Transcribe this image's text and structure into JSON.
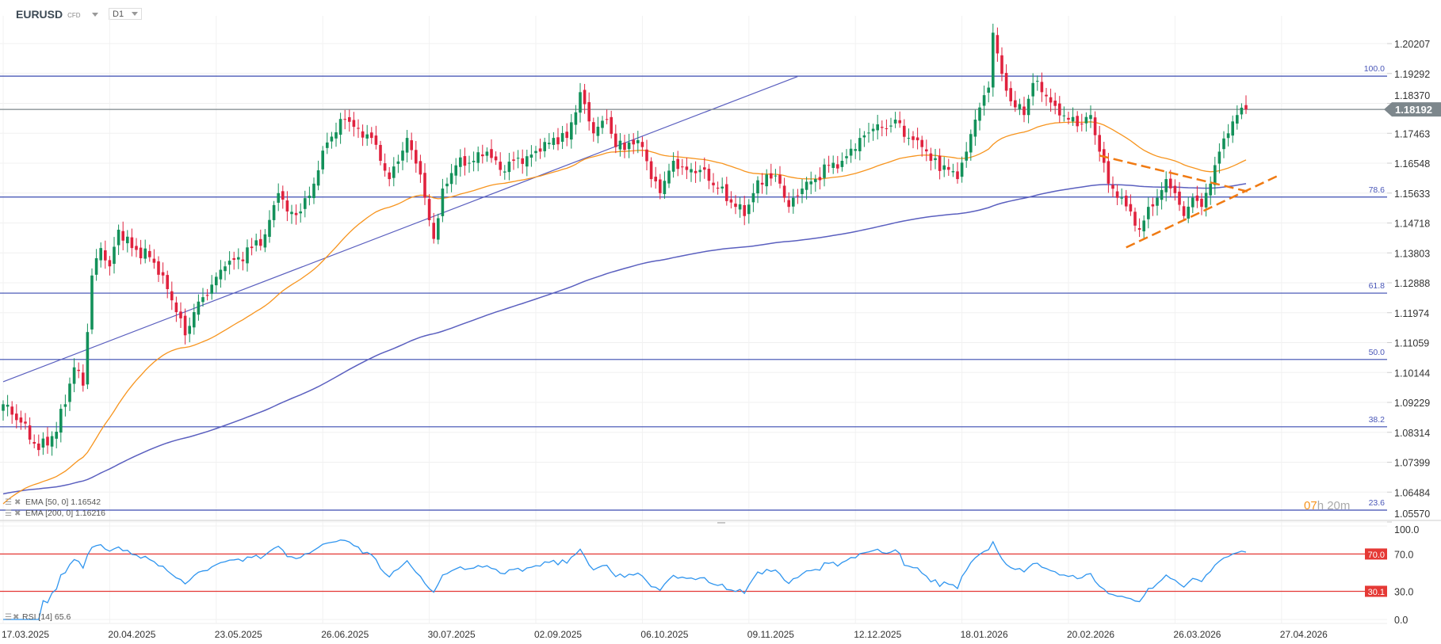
{
  "header": {
    "symbol": "EURUSD",
    "instrument_type": "CFD",
    "timeframe": "D1"
  },
  "colors": {
    "up": "#13915a",
    "down": "#e0223e",
    "ema50": "#f7941d",
    "ema200": "#5a5fbf",
    "fib": "#3a4bb0",
    "rsi": "#2f95ef",
    "rsi_levels": "#e53935",
    "trend": "#5a5fbf",
    "triangle": "#f07a12",
    "price_tag": "#7d878c"
  },
  "chart_data": {
    "type": "candlestick",
    "symbol": "EURUSD",
    "timeframe": "D1",
    "y_ticks": [
      "1.20207",
      "1.19292",
      "1.18370",
      "1.17463",
      "1.16548",
      "1.15633",
      "1.14718",
      "1.13803",
      "1.12888",
      "1.11974",
      "1.11059",
      "1.10144",
      "1.09229",
      "1.08314",
      "1.07399",
      "1.06484",
      "1.05570"
    ],
    "ylim": [
      1.0557,
      1.216
    ],
    "x_ticks": [
      "17.03.2025",
      "20.04.2025",
      "23.05.2025",
      "26.06.2025",
      "30.07.2025",
      "02.09.2025",
      "06.10.2025",
      "09.11.2025",
      "12.12.2025",
      "18.01.2026",
      "20.02.2026",
      "26.03.2026",
      "27.04.2026"
    ],
    "bars_per_x_tick": 24,
    "last_price": "1.18192",
    "last_price_value": 1.18192,
    "close_waypoints": [
      [
        0,
        1.0917
      ],
      [
        4,
        1.0861
      ],
      [
        8,
        1.0777
      ],
      [
        12,
        1.0833
      ],
      [
        16,
        1.103
      ],
      [
        18,
        1.0974
      ],
      [
        20,
        1.1311
      ],
      [
        22,
        1.1395
      ],
      [
        24,
        1.1339
      ],
      [
        26,
        1.1451
      ],
      [
        29,
        1.1395
      ],
      [
        33,
        1.1367
      ],
      [
        36,
        1.1311
      ],
      [
        39,
        1.1199
      ],
      [
        41,
        1.1128
      ],
      [
        43,
        1.1199
      ],
      [
        47,
        1.1283
      ],
      [
        50,
        1.1339
      ],
      [
        53,
        1.1367
      ],
      [
        56,
        1.1395
      ],
      [
        59,
        1.1437
      ],
      [
        62,
        1.1563
      ],
      [
        64,
        1.1507
      ],
      [
        67,
        1.1507
      ],
      [
        70,
        1.1592
      ],
      [
        73,
        1.1718
      ],
      [
        77,
        1.1788
      ],
      [
        80,
        1.176
      ],
      [
        83,
        1.1732
      ],
      [
        85,
        1.1662
      ],
      [
        87,
        1.1606
      ],
      [
        91,
        1.1732
      ],
      [
        94,
        1.162
      ],
      [
        95,
        1.1549
      ],
      [
        97,
        1.1423
      ],
      [
        99,
        1.1577
      ],
      [
        102,
        1.1648
      ],
      [
        106,
        1.1662
      ],
      [
        109,
        1.169
      ],
      [
        112,
        1.1634
      ],
      [
        115,
        1.1662
      ],
      [
        118,
        1.1676
      ],
      [
        121,
        1.169
      ],
      [
        124,
        1.1732
      ],
      [
        127,
        1.1732
      ],
      [
        130,
        1.1872
      ],
      [
        133,
        1.1746
      ],
      [
        136,
        1.1788
      ],
      [
        138,
        1.1704
      ],
      [
        141,
        1.1718
      ],
      [
        144,
        1.1704
      ],
      [
        146,
        1.1606
      ],
      [
        148,
        1.1563
      ],
      [
        151,
        1.1662
      ],
      [
        154,
        1.1634
      ],
      [
        157,
        1.1634
      ],
      [
        161,
        1.1577
      ],
      [
        165,
        1.1521
      ],
      [
        167,
        1.1493
      ],
      [
        169,
        1.1563
      ],
      [
        172,
        1.162
      ],
      [
        175,
        1.1592
      ],
      [
        177,
        1.1521
      ],
      [
        180,
        1.1577
      ],
      [
        183,
        1.1606
      ],
      [
        186,
        1.1648
      ],
      [
        189,
        1.1662
      ],
      [
        193,
        1.1732
      ],
      [
        196,
        1.176
      ],
      [
        199,
        1.176
      ],
      [
        201,
        1.1788
      ],
      [
        204,
        1.1732
      ],
      [
        207,
        1.1704
      ],
      [
        209,
        1.1662
      ],
      [
        212,
        1.1648
      ],
      [
        215,
        1.1606
      ],
      [
        217,
        1.169
      ],
      [
        219,
        1.1788
      ],
      [
        222,
        1.1886
      ],
      [
        223,
        1.2054
      ],
      [
        225,
        1.1928
      ],
      [
        227,
        1.1844
      ],
      [
        230,
        1.1802
      ],
      [
        232,
        1.19
      ],
      [
        234,
        1.1872
      ],
      [
        237,
        1.183
      ],
      [
        240,
        1.1788
      ],
      [
        243,
        1.1774
      ],
      [
        245,
        1.1802
      ],
      [
        247,
        1.169
      ],
      [
        249,
        1.1592
      ],
      [
        252,
        1.1549
      ],
      [
        254,
        1.1507
      ],
      [
        256,
        1.1451
      ],
      [
        258,
        1.1521
      ],
      [
        260,
        1.1549
      ],
      [
        262,
        1.1606
      ],
      [
        264,
        1.1563
      ],
      [
        266,
        1.1493
      ],
      [
        268,
        1.1549
      ],
      [
        270,
        1.1521
      ],
      [
        272,
        1.1592
      ],
      [
        274,
        1.169
      ],
      [
        276,
        1.1746
      ],
      [
        278,
        1.1802
      ],
      [
        280,
        1.18192
      ]
    ],
    "fibonacci": [
      {
        "label": "100.0",
        "price": 1.1921
      },
      {
        "label": "78.6",
        "price": 1.1551
      },
      {
        "label": "61.8",
        "price": 1.1257
      },
      {
        "label": "50.0",
        "price": 1.1054
      },
      {
        "label": "38.2",
        "price": 1.0848
      },
      {
        "label": "23.6",
        "price": 1.0593
      }
    ],
    "trendline": {
      "from": [
        0,
        1.0986
      ],
      "to": [
        179,
        1.192
      ]
    },
    "triangle": {
      "upper": {
        "from": [
          247,
          1.1678
        ],
        "to": [
          281,
          1.1566
        ]
      },
      "lower": {
        "from": [
          253,
          1.1397
        ],
        "to": [
          287,
          1.1615
        ]
      }
    },
    "indicators": {
      "ema50": {
        "label": "EMA [50, 0] 1.16542",
        "value": 1.16542,
        "seed": 1.06
      },
      "ema200": {
        "label": "EMA [200, 0] 1.16216",
        "value": 1.16216,
        "seed": 1.064
      }
    },
    "rsi": {
      "label": "RSI [14] 65.6",
      "period": 14,
      "value": 65.6,
      "y_ticks": [
        "100.0",
        "70.0",
        "30.0",
        "0.0"
      ],
      "ylim": [
        0,
        100
      ],
      "levels": [
        {
          "label": "70.0",
          "value": 70.0
        },
        {
          "label": "30.1",
          "value": 30.1
        }
      ]
    },
    "countdown": {
      "hours": "07",
      "rest": "h 20m"
    }
  }
}
